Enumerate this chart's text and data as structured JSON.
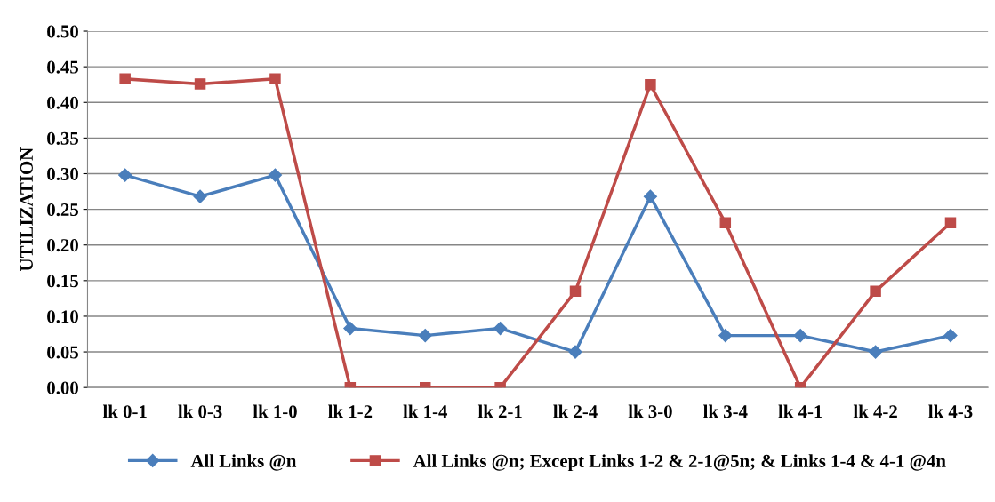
{
  "chart_data": {
    "type": "line",
    "ylabel": "UTILIZATION",
    "categories": [
      "lk 0-1",
      "lk 0-3",
      "lk 1-0",
      "lk 1-2",
      "lk 1-4",
      "lk 2-1",
      "lk 2-4",
      "lk 3-0",
      "lk 3-4",
      "lk 4-1",
      "lk 4-2",
      "lk 4-3"
    ],
    "series": [
      {
        "name": "All Links @n",
        "color": "#4a7ebb",
        "marker": "diamond",
        "values": [
          0.298,
          0.268,
          0.298,
          0.083,
          0.073,
          0.083,
          0.05,
          0.268,
          0.073,
          0.073,
          0.05,
          0.073
        ]
      },
      {
        "name": "All Links @n; Except Links 1-2 & 2-1@5n; & Links 1-4 & 4-1 @4n",
        "color": "#be4b48",
        "marker": "square",
        "values": [
          0.433,
          0.426,
          0.433,
          0.0,
          0.0,
          0.0,
          0.135,
          0.425,
          0.231,
          0.0,
          0.135,
          0.231
        ]
      }
    ],
    "ylim": [
      0,
      0.5
    ],
    "yticks": [
      {
        "value": 0,
        "label": "0.00"
      },
      {
        "value": 0.05,
        "label": "0.05"
      },
      {
        "value": 0.1,
        "label": "0.10"
      },
      {
        "value": 0.15,
        "label": "0.15"
      },
      {
        "value": 0.2,
        "label": "0.20"
      },
      {
        "value": 0.25,
        "label": "0.25"
      },
      {
        "value": 0.3,
        "label": "0.30"
      },
      {
        "value": 0.35,
        "label": "0.35"
      },
      {
        "value": 0.4,
        "label": "0.40"
      },
      {
        "value": 0.45,
        "label": "0.45"
      },
      {
        "value": 0.5,
        "label": "0.50"
      }
    ],
    "grid": "y",
    "legend": "bottom",
    "line_style": "solid"
  }
}
